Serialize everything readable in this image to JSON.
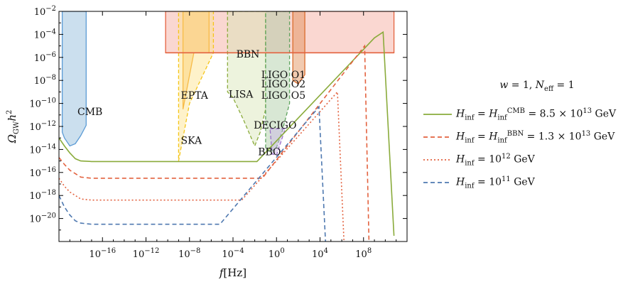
{
  "chart_data": {
    "type": "line",
    "xlabel": "f[Hz]",
    "ylabel": "Ω_GW h²",
    "x_scale": "log",
    "y_scale": "log",
    "xlim_log10": [
      -20,
      12
    ],
    "ylim_log10": [
      -22,
      -2
    ],
    "x_ticks": [
      {
        "exp": -16,
        "label": "10^{-16}"
      },
      {
        "exp": -12,
        "label": "10^{-12}"
      },
      {
        "exp": -8,
        "label": "10^{-8}"
      },
      {
        "exp": -4,
        "label": "10^{-4}"
      },
      {
        "exp": 0,
        "label": "10^{0}"
      },
      {
        "exp": 4,
        "label": "10^{4}"
      },
      {
        "exp": 8,
        "label": "10^{8}"
      }
    ],
    "y_ticks": [
      {
        "exp": -2,
        "label": "10^{-2}"
      },
      {
        "exp": -4,
        "label": "10^{-4}"
      },
      {
        "exp": -6,
        "label": "10^{-6}"
      },
      {
        "exp": -8,
        "label": "10^{-8}"
      },
      {
        "exp": -10,
        "label": "10^{-10}"
      },
      {
        "exp": -12,
        "label": "10^{-12}"
      },
      {
        "exp": -14,
        "label": "10^{-14}"
      },
      {
        "exp": -16,
        "label": "10^{-16}"
      },
      {
        "exp": -18,
        "label": "10^{-18}"
      },
      {
        "exp": -20,
        "label": "10^{-20}"
      }
    ],
    "series": [
      {
        "name": "H_inf = H_inf^CMB = 8.5 × 10^13 GeV",
        "color": "#8aab3b",
        "dash": "solid",
        "points_log10": [
          [
            -20,
            -13.0
          ],
          [
            -19.5,
            -13.7
          ],
          [
            -19.0,
            -14.3
          ],
          [
            -18.5,
            -14.8
          ],
          [
            -18.0,
            -15.0
          ],
          [
            -17.0,
            -15.05
          ],
          [
            -4.5,
            -15.05
          ],
          [
            -1.8,
            -15.05
          ],
          [
            9.0,
            -4.3
          ],
          [
            9.8,
            -3.8
          ],
          [
            10.8,
            -21.5
          ]
        ]
      },
      {
        "name": "H_inf = H_inf^BBN = 1.3 × 10^13 GeV",
        "color": "#e3623f",
        "dash": "dashed",
        "points_log10": [
          [
            -20,
            -14.7
          ],
          [
            -19.5,
            -15.3
          ],
          [
            -19.0,
            -15.8
          ],
          [
            -18.5,
            -16.1
          ],
          [
            -18.0,
            -16.4
          ],
          [
            -17.0,
            -16.5
          ],
          [
            -4.5,
            -16.5
          ],
          [
            -1.3,
            -16.5
          ],
          [
            8.1,
            -5.0
          ],
          [
            8.5,
            -22.0
          ]
        ]
      },
      {
        "name": "H_inf = 10^12 GeV",
        "color": "#e3623f",
        "dash": "dotted",
        "points_log10": [
          [
            -20,
            -16.5
          ],
          [
            -19.5,
            -17.2
          ],
          [
            -19.0,
            -17.7
          ],
          [
            -18.5,
            -18.0
          ],
          [
            -18.0,
            -18.3
          ],
          [
            -17.0,
            -18.4
          ],
          [
            -4.5,
            -18.4
          ],
          [
            -3.2,
            -18.4
          ],
          [
            5.6,
            -9.0
          ],
          [
            6.2,
            -22.0
          ]
        ]
      },
      {
        "name": "H_inf = 10^11 GeV",
        "color": "#4f79b0",
        "dash": "dashed",
        "points_log10": [
          [
            -20,
            -18.0
          ],
          [
            -19.5,
            -19.0
          ],
          [
            -19.0,
            -19.7
          ],
          [
            -18.5,
            -20.2
          ],
          [
            -18.0,
            -20.4
          ],
          [
            -17.0,
            -20.5
          ],
          [
            -6.0,
            -20.5
          ],
          [
            -5.2,
            -20.5
          ],
          [
            3.9,
            -10.3
          ],
          [
            4.5,
            -22.0
          ]
        ]
      }
    ],
    "regions": [
      {
        "label": "CMB",
        "color": "#8bb7d9",
        "line_color": "#5b9bd5",
        "polygon_log10": [
          [
            -19.7,
            -2
          ],
          [
            -17.5,
            -2
          ],
          [
            -17.5,
            -11.9
          ],
          [
            -18.0,
            -12.8
          ],
          [
            -18.5,
            -13.5
          ],
          [
            -19.0,
            -13.7
          ],
          [
            -19.5,
            -13.0
          ],
          [
            -19.7,
            -12.5
          ]
        ]
      },
      {
        "label": "BBN",
        "color": "#f4a79a",
        "line_color": "#e3623f",
        "polygon_log10": [
          [
            -10.2,
            -2
          ],
          [
            10.8,
            -2
          ],
          [
            10.8,
            -5.6
          ],
          [
            -10.2,
            -5.6
          ]
        ]
      },
      {
        "label": "EPTA",
        "color": "#fbbf5a",
        "line_color": "#f39c12",
        "polygon_log10": [
          [
            -8.6,
            -2
          ],
          [
            -6.2,
            -2
          ],
          [
            -6.2,
            -5.6
          ],
          [
            -7.6,
            -5.6
          ],
          [
            -8.6,
            -10.5
          ]
        ]
      },
      {
        "label": "SKA",
        "color": "#fde38a",
        "line_color": "#f5c518",
        "polygon_log10": [
          [
            -9.0,
            -2
          ],
          [
            -5.8,
            -2
          ],
          [
            -5.8,
            -5.6
          ],
          [
            -8.0,
            -10.0
          ],
          [
            -8.7,
            -13.5
          ],
          [
            -9.0,
            -15.0
          ]
        ]
      },
      {
        "label": "LISA",
        "color": "#d6e4b3",
        "line_color": "#8aab3b",
        "polygon_log10": [
          [
            -4.5,
            -2
          ],
          [
            -1.0,
            -2
          ],
          [
            -1.0,
            -10.5
          ],
          [
            -1.5,
            -12.5
          ],
          [
            -2.0,
            -13.7
          ],
          [
            -3.0,
            -11.5
          ],
          [
            -4.0,
            -9.5
          ],
          [
            -4.5,
            -9.0
          ]
        ]
      },
      {
        "label": "DECIGO",
        "color": "#a9c9a0",
        "line_color": "#5ea35e",
        "polygon_log10": [
          [
            -1.0,
            -2
          ],
          [
            1.2,
            -2
          ],
          [
            1.2,
            -10.0
          ],
          [
            0.5,
            -12.5
          ],
          [
            0.0,
            -13.8
          ],
          [
            -0.5,
            -14.2
          ],
          [
            -1.0,
            -14.0
          ]
        ]
      },
      {
        "label": "BBO",
        "color": "#c9b3e6",
        "line_color": "#9b73c9",
        "polygon_log10": [
          [
            -0.6,
            -12.2
          ],
          [
            0.8,
            -12.2
          ],
          [
            0.0,
            -14.5
          ],
          [
            -0.4,
            -14.4
          ]
        ]
      },
      {
        "label": "LIGO O1",
        "color": "#e08a4f",
        "line_color": "#d96c2c",
        "polygon_log10": [
          [
            1.5,
            -2
          ],
          [
            2.6,
            -2
          ],
          [
            2.6,
            -7.5
          ],
          [
            2.0,
            -8.3
          ],
          [
            1.5,
            -8.0
          ]
        ]
      }
    ],
    "text_labels": [
      {
        "text": "CMB",
        "at_log10": [
          -18.3,
          -11.0
        ]
      },
      {
        "text": "BBN",
        "at_log10": [
          -3.7,
          -6.0
        ]
      },
      {
        "text": "EPTA",
        "at_log10": [
          -8.8,
          -9.6
        ]
      },
      {
        "text": "LISA",
        "at_log10": [
          -4.4,
          -9.5
        ]
      },
      {
        "text": "SKA",
        "at_log10": [
          -8.8,
          -13.5
        ]
      },
      {
        "text": "DECIGO",
        "at_log10": [
          -2.1,
          -12.2
        ]
      },
      {
        "text": "BBO",
        "at_log10": [
          -1.7,
          -14.5
        ]
      },
      {
        "text": "LIGO O1",
        "at_log10": [
          -1.4,
          -7.8
        ]
      },
      {
        "text": "LIGO O2",
        "at_log10": [
          -1.4,
          -8.6
        ]
      },
      {
        "text": "LIGO O5",
        "at_log10": [
          -1.4,
          -9.6
        ]
      }
    ],
    "legend": {
      "title": "w = 1, N_eff = 1",
      "placement": "right"
    }
  }
}
